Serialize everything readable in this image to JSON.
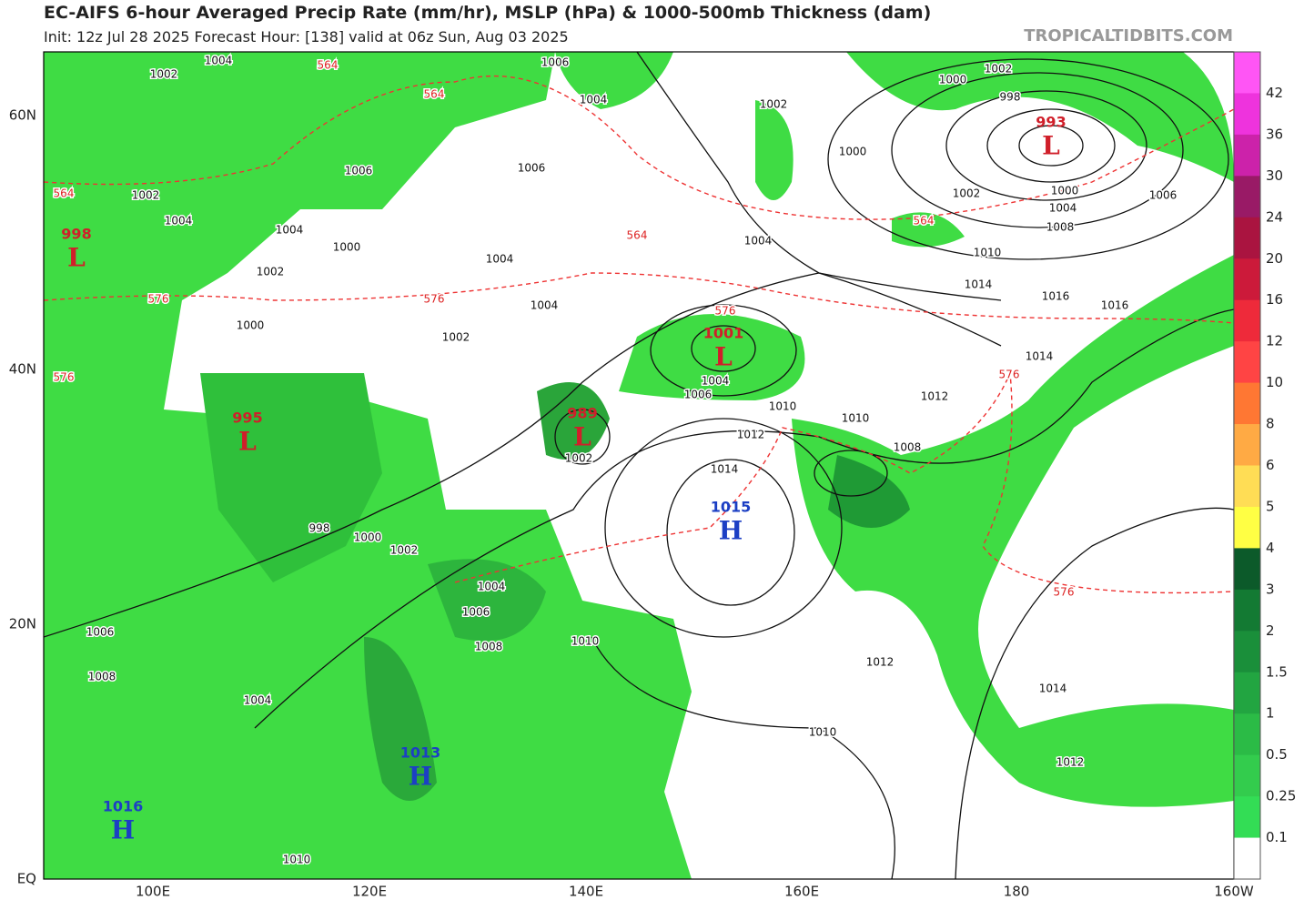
{
  "header": {
    "title": "EC-AIFS 6-hour Averaged Precip Rate (mm/hr), MSLP (hPa) & 1000-500mb Thickness (dam)",
    "subtitle": "Init: 12z Jul 28 2025   Forecast Hour: [138]   valid at 06z Sun, Aug 03 2025",
    "site": "TROPICALTIDBITS.COM"
  },
  "map": {
    "lat_labels": [
      "60N",
      "40N",
      "20N",
      "EQ"
    ],
    "lon_labels": [
      "100E",
      "120E",
      "140E",
      "160E",
      "180",
      "160W"
    ],
    "centers": [
      {
        "kind": "L",
        "pressure": "993"
      },
      {
        "kind": "L",
        "pressure": "998"
      },
      {
        "kind": "L",
        "pressure": "995"
      },
      {
        "kind": "L",
        "pressure": "989"
      },
      {
        "kind": "L",
        "pressure": "1001"
      },
      {
        "kind": "H",
        "pressure": "1015"
      },
      {
        "kind": "H",
        "pressure": "1013"
      },
      {
        "kind": "H",
        "pressure": "1016"
      }
    ],
    "isobar_labels": [
      "1006",
      "1004",
      "1002",
      "998",
      "1000",
      "1002",
      "1000",
      "1004",
      "1008",
      "1006",
      "1010",
      "1014",
      "1016",
      "1016",
      "1014",
      "1012",
      "1010",
      "1008",
      "1010",
      "1006",
      "1004",
      "1012",
      "1014",
      "1004",
      "1002",
      "1000",
      "1006",
      "1006",
      "1004",
      "1004",
      "1002",
      "1002",
      "1000",
      "998",
      "1002",
      "1004",
      "1006",
      "1008",
      "1010",
      "1012",
      "1014",
      "1010",
      "1012",
      "1008",
      "1004",
      "1010",
      "1006",
      "1004",
      "1002",
      "1002",
      "1004",
      "1004",
      "1000",
      "1002",
      "1000"
    ],
    "thickness_labels": [
      "564",
      "564",
      "564",
      "564",
      "564",
      "576",
      "576",
      "576",
      "576",
      "576",
      "576"
    ]
  },
  "colorbar": {
    "labels": [
      "42",
      "36",
      "30",
      "24",
      "20",
      "16",
      "12",
      "10",
      "8",
      "6",
      "5",
      "4",
      "3",
      "2",
      "1.5",
      "1",
      "0.5",
      "0.25",
      "0.1"
    ]
  }
}
